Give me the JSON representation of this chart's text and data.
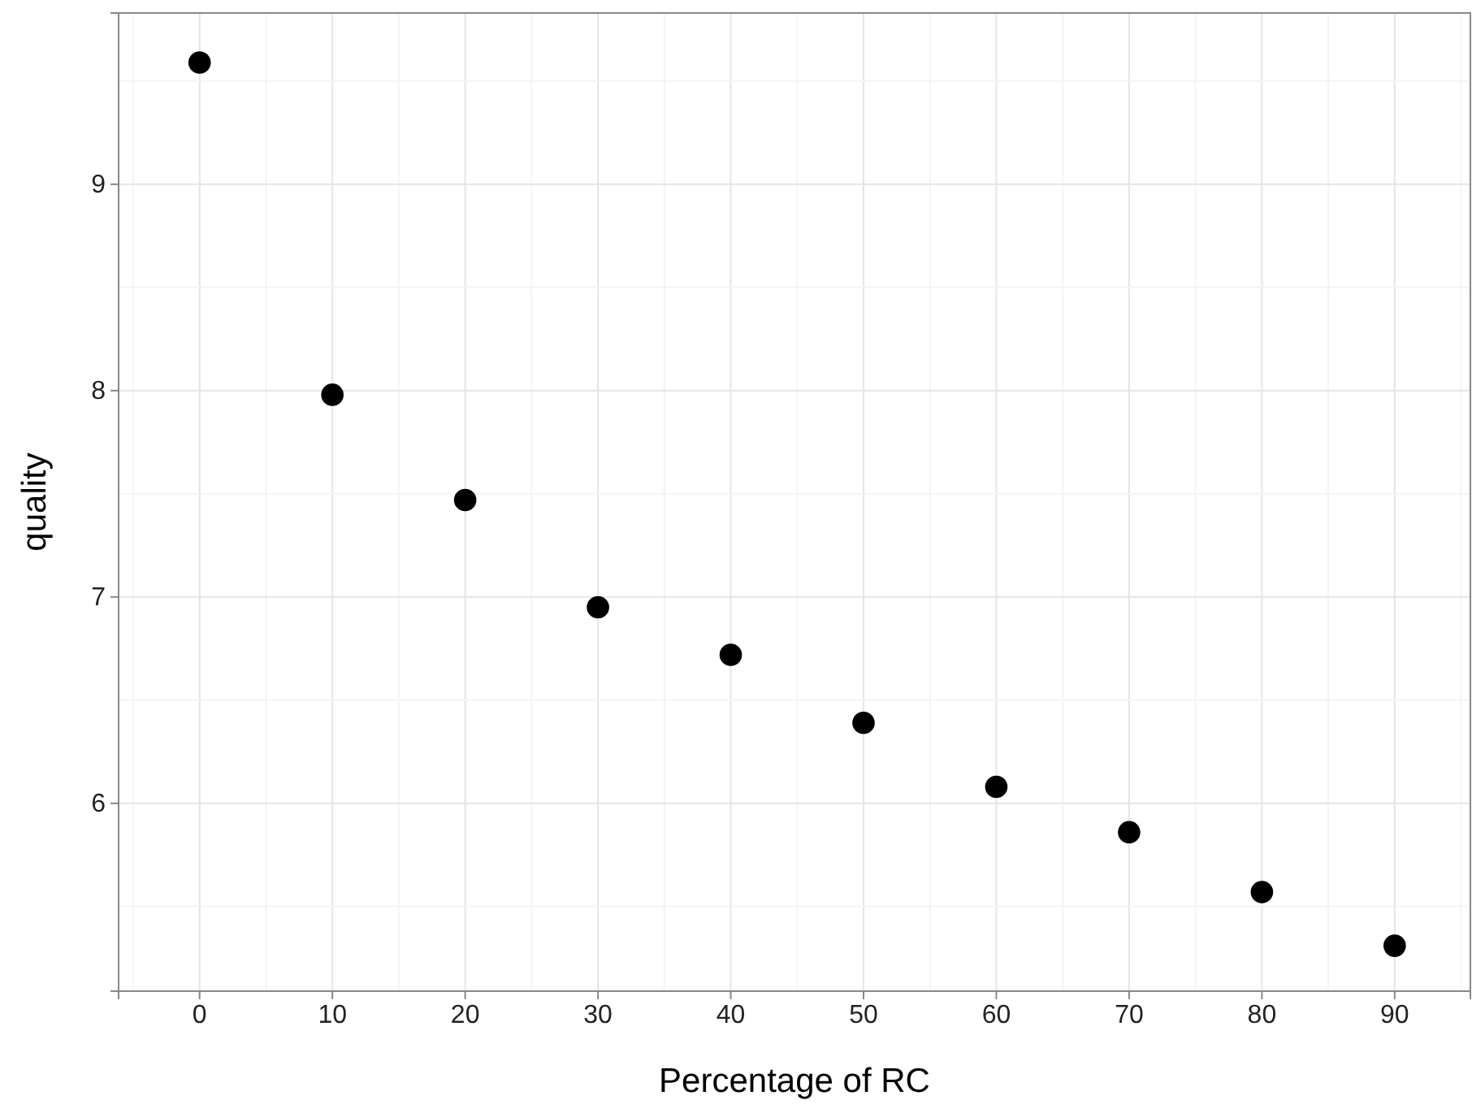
{
  "chart_data": {
    "type": "scatter",
    "xlabel": "Percentage of RC",
    "ylabel": "quality",
    "x": [
      0,
      10,
      20,
      30,
      40,
      50,
      60,
      70,
      80,
      90
    ],
    "series": [
      {
        "color": "#000000",
        "values": [
          9.59,
          7.98,
          7.47,
          6.95,
          6.72,
          6.39,
          6.08,
          5.86,
          5.57,
          5.31
        ]
      }
    ],
    "xlim": [
      -6.1,
      95.7
    ],
    "ylim": [
      5.09,
      9.83
    ],
    "xticks": [
      0,
      10,
      20,
      30,
      40,
      50,
      60,
      70,
      80,
      90
    ],
    "yticks": [
      6,
      7,
      8,
      9
    ],
    "grid": true,
    "marker": "circle"
  }
}
